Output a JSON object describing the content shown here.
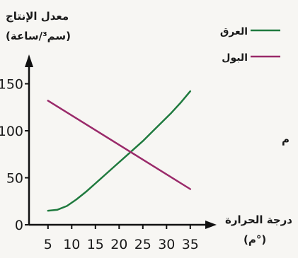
{
  "chart_data": {
    "type": "line",
    "ylabel_line1": "معدل الإنتاج",
    "ylabel_line2": "(سم³/ساعة)",
    "xlabel_line1": "درجة الحرارة",
    "xlabel_line2": "(م°)",
    "side_fragment": "م",
    "x_ticks": [
      5,
      10,
      15,
      20,
      25,
      30,
      35
    ],
    "y_ticks": [
      0,
      50,
      100,
      150
    ],
    "xlim": [
      1,
      37
    ],
    "ylim": [
      0,
      165
    ],
    "legend_position": "top-right",
    "series": [
      {
        "name": "العرق",
        "color": "#1f7a3e",
        "x": [
          5,
          7,
          9,
          11,
          13,
          15,
          17,
          19,
          21,
          23,
          25,
          27,
          29,
          31,
          33,
          35
        ],
        "y": [
          15,
          16,
          20,
          27,
          35,
          44,
          53,
          62,
          71,
          80,
          89,
          99,
          109,
          119,
          130,
          142
        ]
      },
      {
        "name": "البول",
        "color": "#9a2a6a",
        "x": [
          5,
          35
        ],
        "y": [
          132,
          38
        ]
      }
    ]
  }
}
